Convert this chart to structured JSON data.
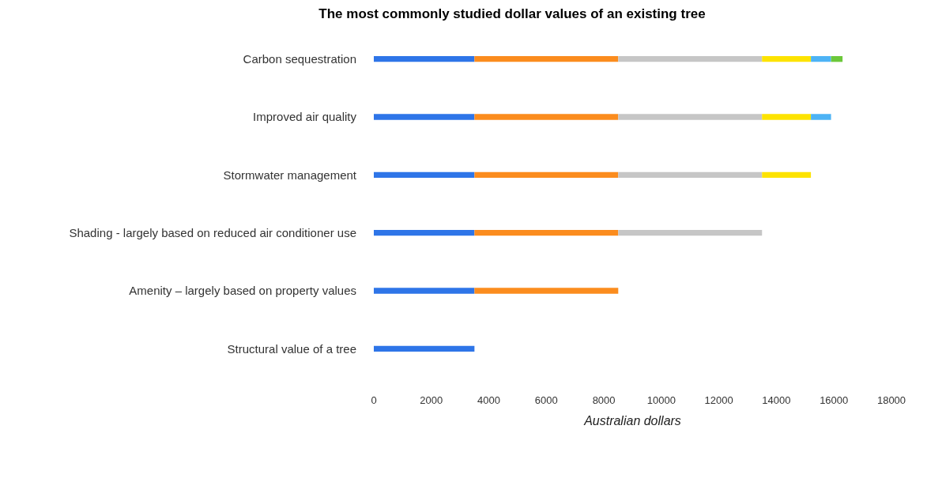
{
  "chart_data": {
    "type": "bar",
    "title": "The most commonly studied dollar values of an existing tree",
    "xlabel": "Australian dollars",
    "orientation": "horizontal",
    "stacked": true,
    "legend": false,
    "grid": false,
    "categories": [
      "Carbon sequestration",
      "Improved air quality",
      "Stormwater management",
      "Shading - largely based on reduced air conditioner use",
      "Amenity – largely based on property values",
      "Structural value of a tree"
    ],
    "xlim": [
      0,
      18000
    ],
    "xticks": [
      0,
      2000,
      4000,
      6000,
      8000,
      10000,
      12000,
      14000,
      16000,
      18000
    ],
    "series": [
      {
        "color": "#2e75e8",
        "values": [
          3500,
          3500,
          3500,
          3500,
          3500,
          3500
        ]
      },
      {
        "color": "#fb8c1e",
        "values": [
          5000,
          5000,
          5000,
          5000,
          5000,
          null
        ]
      },
      {
        "color": "#c6c6c6",
        "values": [
          5000,
          5000,
          5000,
          5000,
          null,
          null
        ]
      },
      {
        "color": "#fde300",
        "values": [
          1700,
          1700,
          1700,
          null,
          null,
          null
        ]
      },
      {
        "color": "#4db3f5",
        "values": [
          700,
          700,
          null,
          null,
          null,
          null
        ]
      },
      {
        "color": "#6cc83a",
        "values": [
          400,
          null,
          null,
          null,
          null,
          null
        ]
      }
    ]
  }
}
